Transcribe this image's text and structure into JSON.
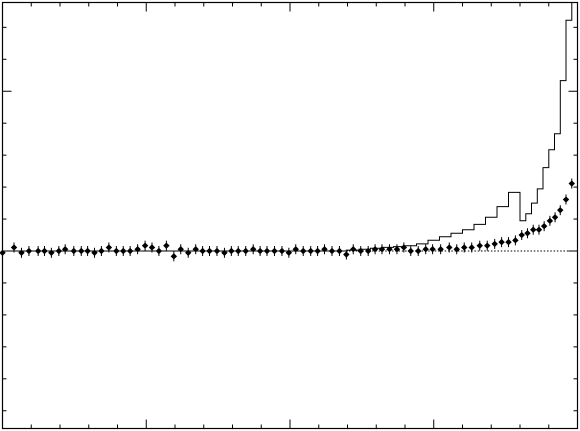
{
  "chart_data": {
    "type": "scatter",
    "title": "",
    "xlabel": "",
    "ylabel": "",
    "xlim": [
      0,
      100
    ],
    "ylim": [
      -1.0,
      1.4
    ],
    "grid": false,
    "legend": "none",
    "colors": {
      "points": "#000000",
      "histogram": "#000000",
      "reference": "#000000",
      "axes": "#000000"
    },
    "x_major_ticks": [
      25,
      50,
      75
    ],
    "x_minor_ticks": [
      5,
      10,
      15,
      20,
      30,
      35,
      40,
      45,
      55,
      60,
      65,
      70,
      80,
      85,
      90,
      95
    ],
    "y_major_ticks": [
      0.9,
      0.0
    ],
    "y_minor_ticks": [
      -0.9,
      -0.72,
      -0.54,
      -0.36,
      -0.18,
      0.18,
      0.36,
      0.54,
      0.72,
      1.08,
      1.26
    ],
    "reference_line": 0.0,
    "series": [
      {
        "kind": "histogram",
        "x_edges": [
          0,
          2,
          4,
          6,
          8,
          10,
          12,
          14,
          16,
          18,
          20,
          22,
          24,
          26,
          28,
          30,
          32,
          34,
          36,
          38,
          40,
          42,
          44,
          46,
          48,
          50,
          52,
          54,
          56,
          58,
          60,
          62,
          64,
          66,
          68,
          70,
          72,
          74,
          76,
          78,
          80,
          82,
          84,
          86,
          88,
          90,
          91,
          92,
          93,
          94,
          95,
          96,
          97,
          98,
          99,
          100
        ],
        "values": [
          0.0,
          0.0,
          0.0,
          0.0,
          0.0,
          0.0,
          0.0,
          0.0,
          0.0,
          0.0,
          0.0,
          0.0,
          0.0,
          0.0,
          0.0,
          0.0,
          0.0,
          0.0,
          0.0,
          0.0,
          0.0,
          0.0,
          0.0,
          0.0,
          0.0,
          0.0,
          0.0,
          0.0,
          0.0,
          0.0,
          0.005,
          0.01,
          0.015,
          0.02,
          0.025,
          0.03,
          0.04,
          0.06,
          0.08,
          0.1,
          0.12,
          0.15,
          0.19,
          0.25,
          0.33,
          0.17,
          0.21,
          0.27,
          0.35,
          0.47,
          0.57,
          0.66,
          0.96,
          1.3,
          1.4
        ]
      },
      {
        "kind": "points",
        "x": [
          0,
          2,
          3.3,
          4.6,
          6.2,
          7.3,
          8.5,
          9.8,
          10.9,
          12.4,
          13.7,
          14.8,
          16.0,
          17.2,
          18.5,
          19.8,
          21.0,
          22.2,
          23.5,
          24.8,
          26.0,
          27.2,
          28.5,
          29.8,
          31.0,
          32.3,
          33.6,
          34.8,
          36.0,
          37.3,
          38.6,
          39.8,
          41.0,
          42.3,
          43.6,
          44.8,
          46.0,
          47.3,
          48.6,
          49.8,
          51.0,
          52.3,
          53.6,
          54.8,
          56.0,
          57.3,
          58.6,
          59.8,
          61.0,
          62.3,
          63.6,
          64.8,
          66.0,
          67.3,
          68.6,
          69.8,
          71.0,
          72.3,
          73.6,
          74.8,
          76.2,
          77.7,
          79.0,
          80.3,
          81.6,
          83.0,
          84.3,
          85.6,
          86.8,
          88.0,
          89.2,
          90.3,
          91.3,
          92.3,
          93.3,
          94.2,
          95.2,
          96.1,
          97.0,
          98.0,
          99.0
        ],
        "y": [
          -0.01,
          0.02,
          -0.01,
          0.0,
          0.0,
          0.0,
          -0.01,
          0.0,
          0.01,
          0.0,
          0.0,
          0.0,
          -0.01,
          0.0,
          0.02,
          0.0,
          0.0,
          0.0,
          0.01,
          0.03,
          0.02,
          0.0,
          0.03,
          -0.03,
          0.01,
          -0.01,
          0.01,
          0.0,
          0.0,
          0.0,
          -0.01,
          0.0,
          0.0,
          0.0,
          0.01,
          0.0,
          0.0,
          0.0,
          0.0,
          -0.01,
          0.01,
          0.0,
          0.0,
          0.0,
          0.01,
          0.0,
          0.0,
          -0.02,
          0.01,
          0.0,
          0.0,
          0.01,
          0.01,
          0.01,
          0.01,
          0.02,
          0.0,
          0.0,
          0.01,
          0.01,
          0.01,
          0.02,
          0.01,
          0.02,
          0.02,
          0.03,
          0.03,
          0.04,
          0.05,
          0.05,
          0.06,
          0.09,
          0.1,
          0.12,
          0.12,
          0.14,
          0.17,
          0.19,
          0.23,
          0.29,
          0.38
        ]
      }
    ]
  }
}
